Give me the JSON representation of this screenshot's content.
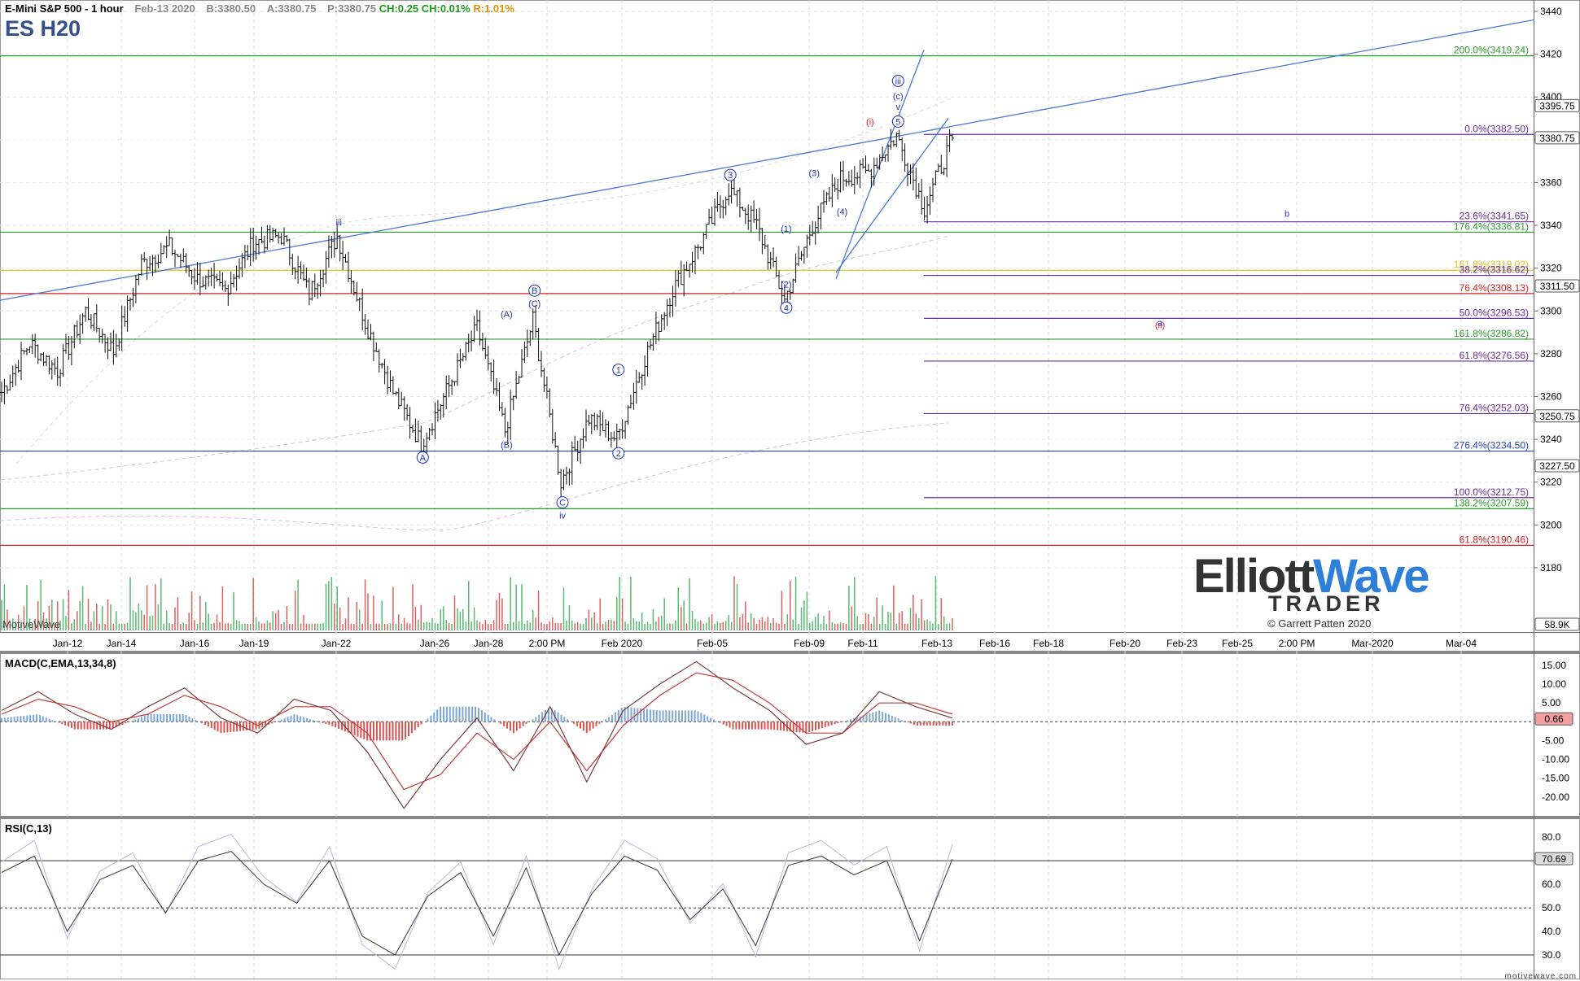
{
  "header": {
    "title": "E-Mini S&P 500 - 1 hour",
    "date": "Feb-13 2020",
    "bid": "B:3380.50",
    "ask": "A:3380.75",
    "price": "P:3380.75",
    "change": "CH:0.25",
    "change_pct": "CH:0.01%",
    "range": "R:1.01%"
  },
  "symbol": "ES H20",
  "watermark": "MotiveWave",
  "footer": "motivewave.com",
  "logo": {
    "elliott": "Elliott",
    "wave": "Wave",
    "trader": "TRADER",
    "copyright": "© Garrett Patten 2020"
  },
  "colors": {
    "green": "#2a9d2a",
    "red": "#d42020",
    "purple": "#6a2c9a",
    "blue": "#2440c8",
    "yellow": "#e3c31c",
    "trend": "#4a78d8",
    "bull": "#2fa84f",
    "bear": "#d13b3b"
  },
  "chart_data": [
    {
      "type": "line",
      "subtype": "candlestick",
      "ylim": [
        3164,
        3444
      ],
      "y_ticks": [
        3180,
        3200,
        3220,
        3240,
        3260,
        3280,
        3300,
        3320,
        3340,
        3360,
        3380,
        3400,
        3420,
        3440
      ],
      "x_ticks": [
        "Jan-12",
        "Jan-14",
        "Jan-16",
        "Jan-19",
        "Jan-22",
        "Jan-26",
        "Jan-28",
        "2:00 PM",
        "Feb 2020",
        "Feb-05",
        "Feb-09",
        "Feb-11",
        "Feb-13",
        "Feb-16",
        "Feb-18",
        "Feb-20",
        "Feb-23",
        "Feb-25",
        "2:00 PM",
        "Mar-2020",
        "Mar-04"
      ],
      "price_series": [
        [
          "Jan-10",
          3262
        ],
        [
          "Jan-12",
          3285
        ],
        [
          "Jan-13",
          3272
        ],
        [
          "Jan-14",
          3300
        ],
        [
          "Jan-15",
          3281
        ],
        [
          "Jan-16",
          3322
        ],
        [
          "Jan-17",
          3330
        ],
        [
          "Jan-19",
          3315
        ],
        [
          "Jan-20",
          3310
        ],
        [
          "Jan-21",
          3332
        ],
        [
          "Jan-22",
          3335
        ],
        [
          "Jan-23",
          3308
        ],
        [
          "Jan-24",
          3335
        ],
        [
          "Jan-25",
          3295
        ],
        [
          "Jan-26",
          3262
        ],
        [
          "Jan-27",
          3238
        ],
        [
          "Jan-28",
          3265
        ],
        [
          "Jan-29",
          3292
        ],
        [
          "Jan-30",
          3244
        ],
        [
          "Jan-31",
          3296
        ],
        [
          "Feb-01",
          3220
        ],
        [
          "Feb-02",
          3250
        ],
        [
          "Feb-03",
          3240
        ],
        [
          "Feb-04",
          3278
        ],
        [
          "Feb-05",
          3310
        ],
        [
          "Feb-06",
          3332
        ],
        [
          "Feb-07",
          3357
        ],
        [
          "Feb-08",
          3340
        ],
        [
          "Feb-09",
          3305
        ],
        [
          "Feb-10",
          3340
        ],
        [
          "Feb-11",
          3362
        ],
        [
          "Feb-12",
          3365
        ],
        [
          "Feb-13",
          3382
        ],
        [
          "Feb-13b",
          3348
        ],
        [
          "Feb-13c",
          3380.75
        ]
      ],
      "horizontal_levels": [
        {
          "label": "200.0%(3419.24)",
          "value": 3419.24,
          "color": "green"
        },
        {
          "label": "0.0%(3382.50)",
          "value": 3382.5,
          "color": "purple"
        },
        {
          "label": "23.6%(3341.65)",
          "value": 3341.65,
          "color": "purple"
        },
        {
          "label": "176.4%(3336.81)",
          "value": 3336.81,
          "color": "green"
        },
        {
          "label": "161.8%(3319.02)",
          "value": 3319.02,
          "color": "yellow"
        },
        {
          "label": "38.2%(3316.62)",
          "value": 3316.62,
          "color": "purple"
        },
        {
          "label": "76.4%(3308.13)",
          "value": 3308.13,
          "color": "red"
        },
        {
          "label": "50.0%(3296.53)",
          "value": 3296.53,
          "color": "purple"
        },
        {
          "label": "161.8%(3286.82)",
          "value": 3286.82,
          "color": "green"
        },
        {
          "label": "61.8%(3276.56)",
          "value": 3276.56,
          "color": "purple"
        },
        {
          "label": "76.4%(3252.03)",
          "value": 3252.03,
          "color": "purple"
        },
        {
          "label": "276.4%(3234.50)",
          "value": 3234.5,
          "color": "blue"
        },
        {
          "label": "100.0%(3212.75)",
          "value": 3212.75,
          "color": "purple"
        },
        {
          "label": "138.2%(3207.59)",
          "value": 3207.59,
          "color": "green"
        },
        {
          "label": "61.8%(3190.46)",
          "value": 3190.46,
          "color": "red"
        }
      ],
      "price_tags": [
        {
          "label": "3395.75",
          "value": 3395.75
        },
        {
          "label": "3380.75",
          "value": 3380.75
        },
        {
          "label": "3311.50",
          "value": 3311.5
        },
        {
          "label": "3250.75",
          "value": 3250.75
        },
        {
          "label": "3227.50",
          "value": 3227.5
        }
      ],
      "volume_tag": "58.9K",
      "wave_labels": [
        {
          "text": "iii",
          "x": "Jan-24",
          "y": 3340
        },
        {
          "text": "A",
          "x": "Jan-27",
          "y": 3230,
          "circled": true
        },
        {
          "text": "(A)",
          "x": "Jan-30",
          "y": 3297
        },
        {
          "text": "B",
          "x": "Jan-31",
          "y": 3308,
          "circled": true
        },
        {
          "text": "(C)",
          "x": "Jan-31",
          "y": 3302
        },
        {
          "text": "(B)",
          "x": "Jan-30",
          "y": 3236
        },
        {
          "text": "1",
          "x": "Feb-03",
          "y": 3271,
          "circled": true
        },
        {
          "text": "2",
          "x": "Feb-03",
          "y": 3232,
          "circled": true
        },
        {
          "text": "C",
          "x": "Feb-01",
          "y": 3209,
          "circled": true
        },
        {
          "text": "iv",
          "x": "Feb-01",
          "y": 3203
        },
        {
          "text": "3",
          "x": "Feb-07",
          "y": 3362,
          "circled": true
        },
        {
          "text": "(1)",
          "x": "Feb-09",
          "y": 3337
        },
        {
          "text": "(2)",
          "x": "Feb-09",
          "y": 3311
        },
        {
          "text": "4",
          "x": "Feb-09",
          "y": 3300,
          "circled": true
        },
        {
          "text": "(3)",
          "x": "Feb-10",
          "y": 3363
        },
        {
          "text": "(4)",
          "x": "Feb-11",
          "y": 3345
        },
        {
          "text": "(i)",
          "x": "Feb-12",
          "y": 3387
        },
        {
          "text": "5",
          "x": "Feb-13",
          "y": 3387,
          "circled": true
        },
        {
          "text": "v",
          "x": "Feb-13",
          "y": 3394
        },
        {
          "text": "(c)",
          "x": "Feb-13",
          "y": 3399
        },
        {
          "text": "iii",
          "x": "Feb-13",
          "y": 3406,
          "circled": true
        },
        {
          "text": "b",
          "x": "Feb-21",
          "y": 3344
        },
        {
          "text": "(ii)",
          "x": "Feb-18",
          "y": 3292
        },
        {
          "text": "a",
          "x": "Feb-18",
          "y": 3293
        }
      ]
    },
    {
      "type": "line",
      "title": "MACD(C,EMA,13,34,8)",
      "ylim": [
        -25,
        18
      ],
      "y_ticks": [
        "15.00",
        "10.00",
        "5.00",
        "-5.00",
        "-10.00",
        "-15.00",
        "-20.00"
      ],
      "current_label": "0.66",
      "macd": [
        3,
        8,
        2,
        -2,
        4,
        9,
        1,
        -3,
        6,
        3,
        -8,
        -23,
        -10,
        1,
        -13,
        4,
        -16,
        3,
        10,
        16,
        9,
        3,
        -6,
        -3,
        8,
        4,
        1
      ],
      "signal": [
        2,
        6,
        4,
        0,
        2,
        7,
        4,
        -1,
        4,
        4,
        -3,
        -18,
        -14,
        -3,
        -10,
        0,
        -13,
        -1,
        7,
        13,
        11,
        5,
        -3,
        -3,
        5,
        5,
        2
      ],
      "histogram": [
        1,
        2,
        -2,
        -2,
        2,
        2,
        -3,
        -2,
        2,
        -1,
        -5,
        -5,
        4,
        4,
        -3,
        4,
        -3,
        4,
        3,
        3,
        -2,
        -2,
        -3,
        0,
        3,
        -1,
        -1
      ]
    },
    {
      "type": "line",
      "title": "RSI(C,13)",
      "ylim": [
        20,
        88
      ],
      "y_ticks": [
        "80.0",
        "70.0",
        "60.0",
        "50.0",
        "40.0",
        "30.0"
      ],
      "reference_lines": [
        70,
        50,
        30
      ],
      "current_label": "70.69",
      "values": [
        65,
        72,
        40,
        62,
        68,
        48,
        70,
        74,
        60,
        52,
        70,
        38,
        30,
        55,
        65,
        38,
        67,
        30,
        56,
        72,
        66,
        45,
        58,
        34,
        68,
        72,
        64,
        70,
        36,
        70.69
      ]
    }
  ]
}
